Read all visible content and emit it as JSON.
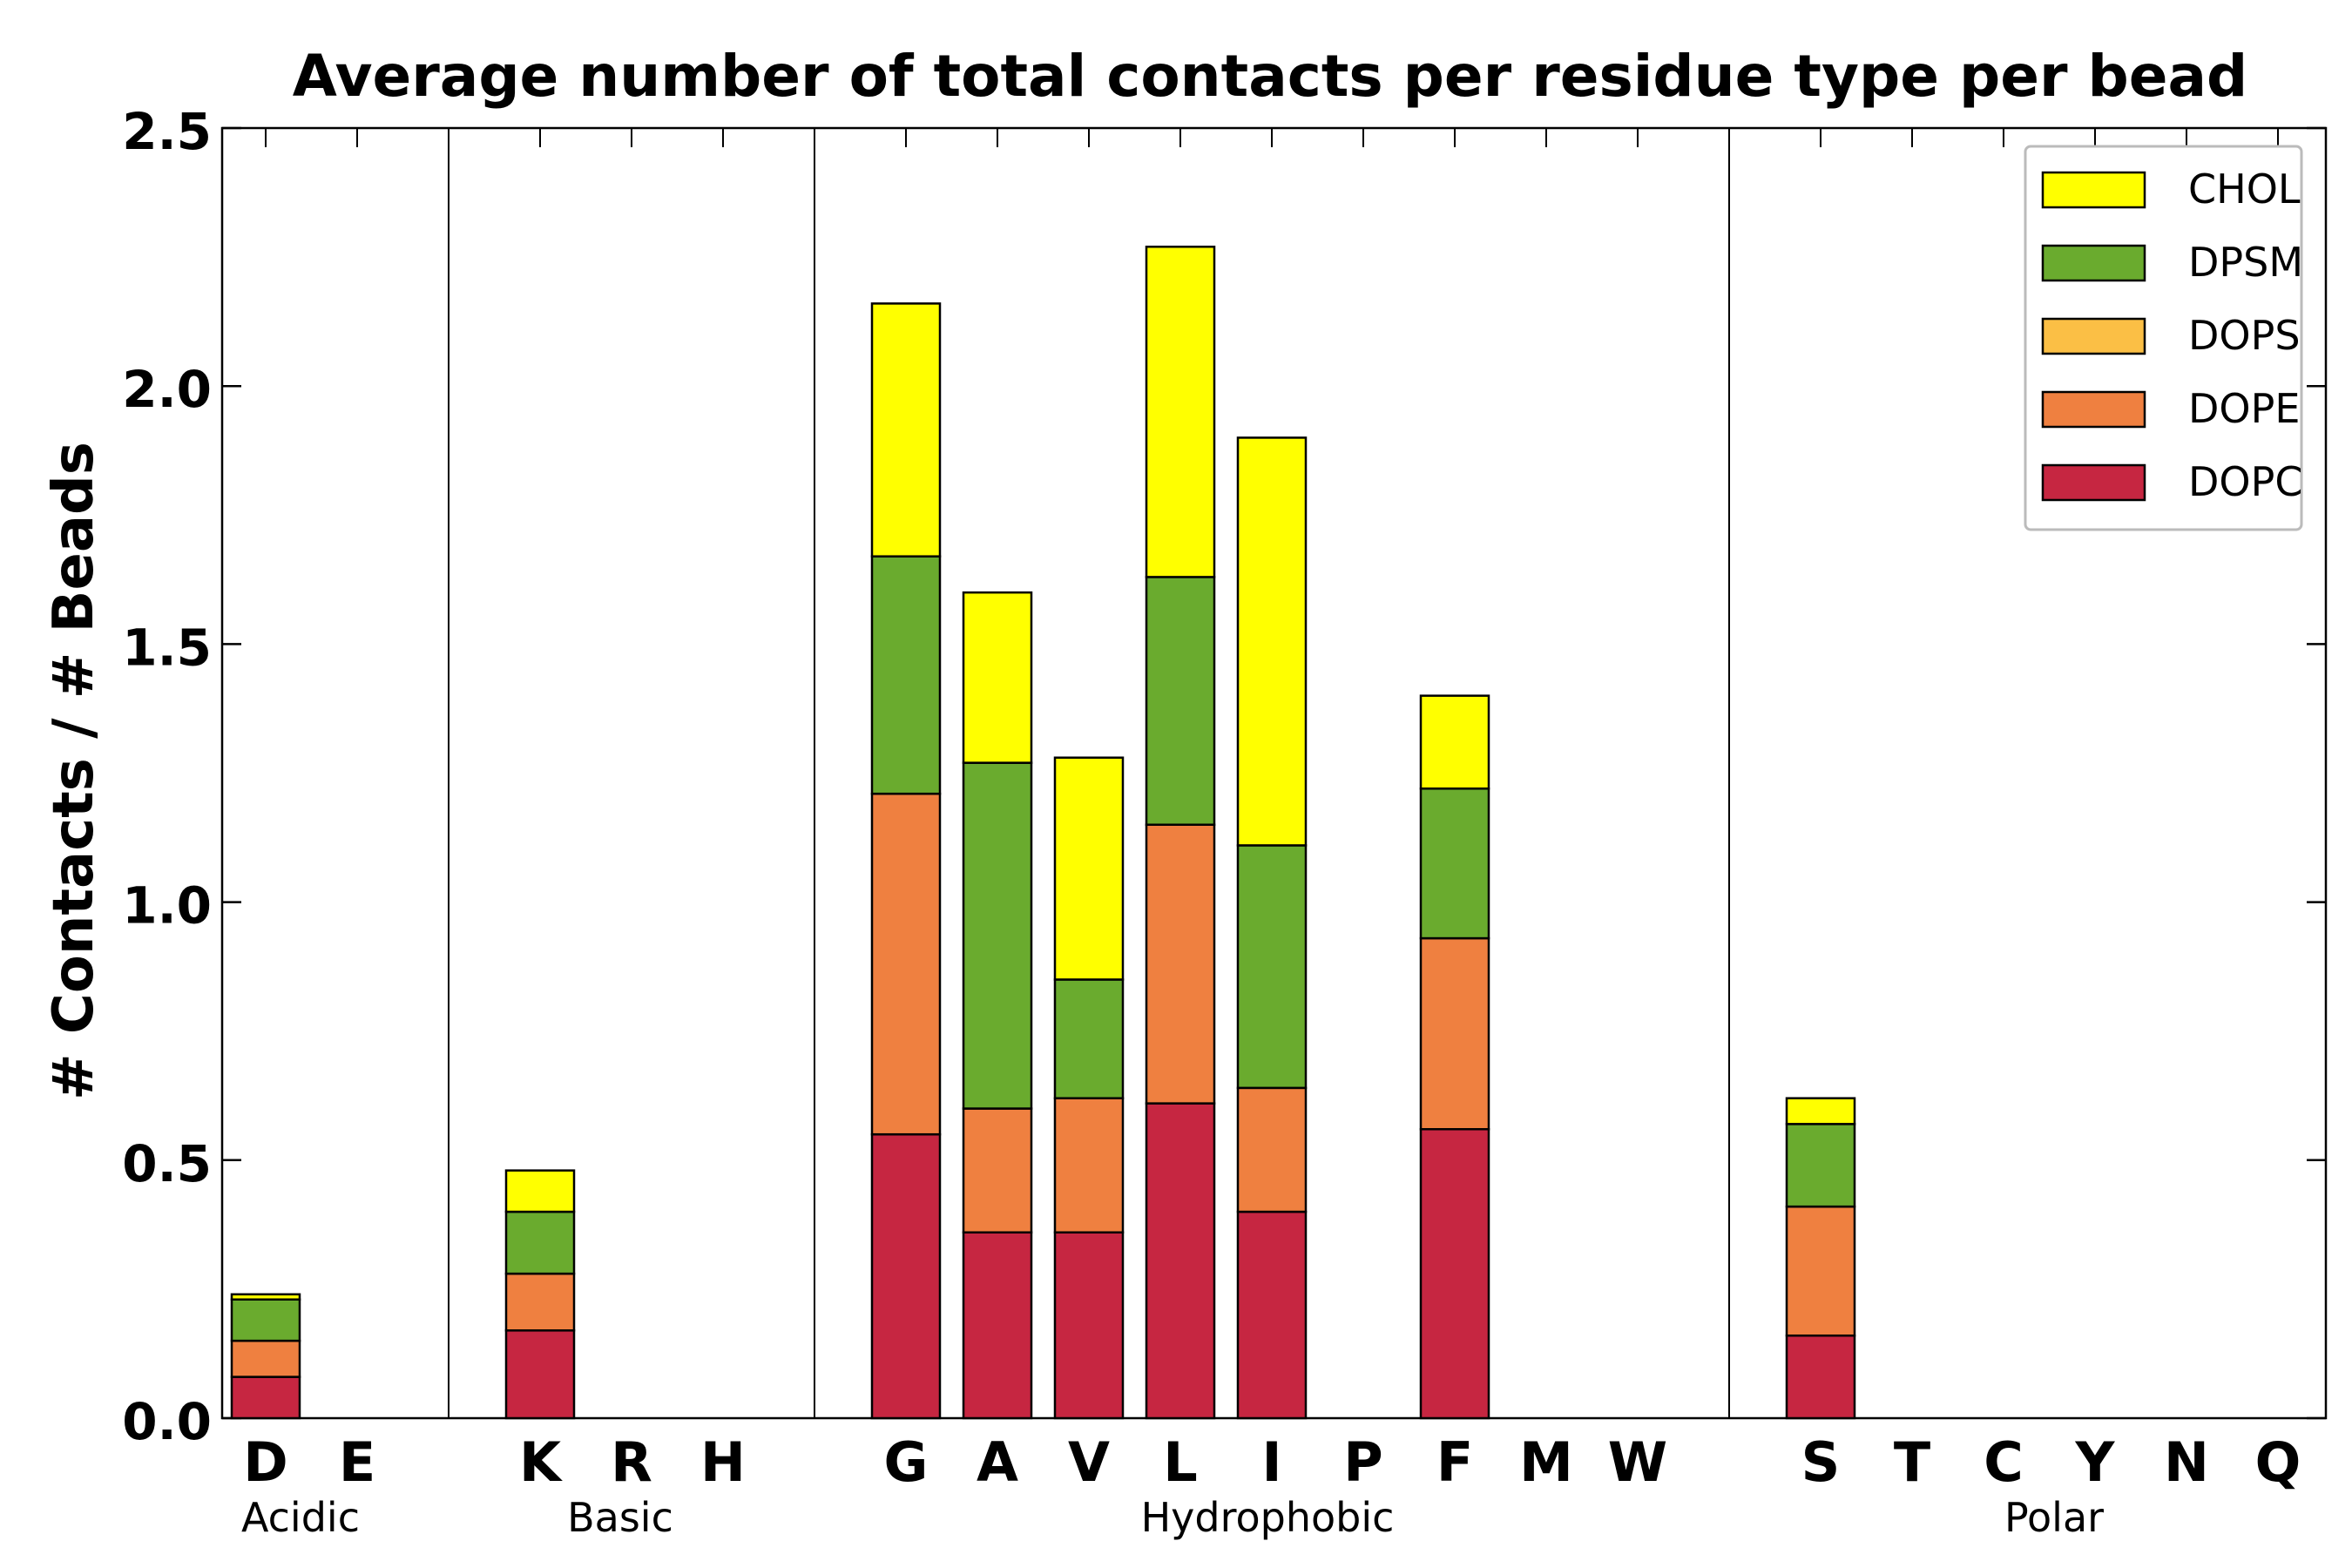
{
  "chart_data": {
    "type": "bar",
    "stacked": true,
    "title": "Average number of total contacts per residue type per bead",
    "ylabel": "# Contacts / # Beads",
    "xlabel": "",
    "ylim": [
      0,
      2.5
    ],
    "yticks": [
      "0.0",
      "0.5",
      "1.0",
      "1.5",
      "2.0",
      "2.5"
    ],
    "ytick_values": [
      0,
      0.5,
      1.0,
      1.5,
      2.0,
      2.5
    ],
    "legend_position": "top-right",
    "categories": [
      "D",
      "E",
      "",
      "K",
      "R",
      "H",
      "",
      "G",
      "A",
      "V",
      "L",
      "I",
      "P",
      "F",
      "M",
      "W",
      "",
      "S",
      "T",
      "C",
      "Y",
      "N",
      "Q"
    ],
    "groups": [
      {
        "name": "Acidic",
        "residues": [
          "D",
          "E"
        ]
      },
      {
        "name": "Basic",
        "residues": [
          "K",
          "R",
          "H"
        ]
      },
      {
        "name": "Hydrophobic",
        "residues": [
          "G",
          "A",
          "V",
          "L",
          "I",
          "P",
          "F",
          "M",
          "W"
        ]
      },
      {
        "name": "Polar",
        "residues": [
          "S",
          "T",
          "C",
          "Y",
          "N",
          "Q"
        ]
      }
    ],
    "series": [
      {
        "name": "DOPC",
        "color": "#c62641",
        "values": [
          0.08,
          0,
          0,
          0.17,
          0,
          0,
          0,
          0.55,
          0.36,
          0.36,
          0.61,
          0.4,
          0,
          0.56,
          0,
          0,
          0,
          0.16,
          0,
          0,
          0,
          0,
          0
        ]
      },
      {
        "name": "DOPE",
        "color": "#ef8040",
        "values": [
          0.07,
          0,
          0,
          0.11,
          0,
          0,
          0,
          0.66,
          0.24,
          0.26,
          0.54,
          0.24,
          0,
          0.37,
          0,
          0,
          0,
          0.25,
          0,
          0,
          0,
          0,
          0
        ]
      },
      {
        "name": "DOPS",
        "color": "#fbbf45",
        "values": [
          0,
          0,
          0,
          0,
          0,
          0,
          0,
          0,
          0,
          0,
          0,
          0,
          0,
          0,
          0,
          0,
          0,
          0,
          0,
          0,
          0,
          0,
          0
        ]
      },
      {
        "name": "DPSM",
        "color": "#6aab2e",
        "values": [
          0.08,
          0,
          0,
          0.12,
          0,
          0,
          0,
          0.46,
          0.67,
          0.23,
          0.48,
          0.47,
          0,
          0.29,
          0,
          0,
          0,
          0.16,
          0,
          0,
          0,
          0,
          0
        ]
      },
      {
        "name": "CHOL",
        "color": "#ffff00",
        "values": [
          0.01,
          0,
          0,
          0.08,
          0,
          0,
          0,
          0.49,
          0.33,
          0.43,
          0.64,
          0.79,
          0,
          0.18,
          0,
          0,
          0,
          0.05,
          0,
          0,
          0,
          0,
          0
        ]
      }
    ],
    "legend_order": [
      "CHOL",
      "DPSM",
      "DOPS",
      "DOPE",
      "DOPC"
    ]
  }
}
